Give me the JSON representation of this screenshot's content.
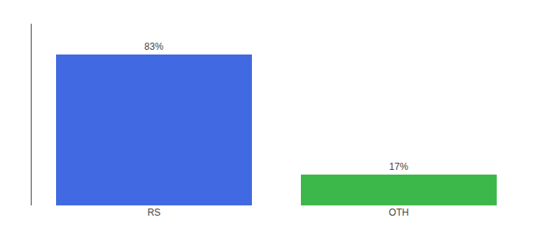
{
  "chart_data": {
    "type": "bar",
    "categories": [
      "RS",
      "OTH"
    ],
    "values": [
      83,
      17
    ],
    "colors": [
      "#4169e1",
      "#3cb84a"
    ],
    "data_labels": true,
    "value_labels": [
      "83%",
      "17%"
    ],
    "ylim": [
      0,
      100
    ],
    "yticks": [],
    "tick_labels": "x",
    "grid": false
  }
}
